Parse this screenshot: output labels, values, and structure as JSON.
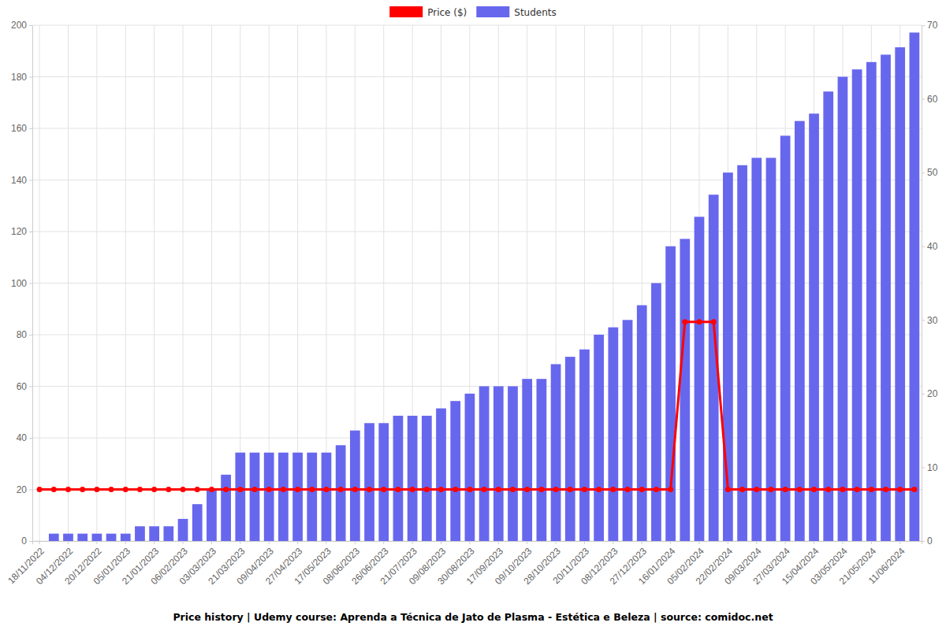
{
  "chart_data": {
    "type": "bar",
    "title": "Price history | Udemy course: Aprenda a Técnica de Jato de Plasma - Estética e Beleza | source: comidoc.net",
    "categories": [
      "18/11/2022",
      null,
      "04/12/2022",
      null,
      "20/12/2022",
      null,
      "05/01/2023",
      null,
      "21/01/2023",
      null,
      "06/02/2023",
      null,
      "03/03/2023",
      null,
      "21/03/2023",
      null,
      "09/04/2023",
      null,
      "27/04/2023",
      null,
      "17/05/2023",
      null,
      "08/06/2023",
      null,
      "26/06/2023",
      null,
      "21/07/2023",
      null,
      "09/08/2023",
      null,
      "30/08/2023",
      null,
      "17/09/2023",
      null,
      "09/10/2023",
      null,
      "28/10/2023",
      null,
      "20/11/2023",
      null,
      "08/12/2023",
      null,
      "27/12/2023",
      null,
      "16/01/2024",
      null,
      "05/02/2024",
      null,
      "22/02/2024",
      null,
      "09/03/2024",
      null,
      "27/03/2024",
      null,
      "15/04/2024",
      null,
      "03/05/2024",
      null,
      "21/05/2024",
      null,
      "11/06/2024",
      null
    ],
    "series": [
      {
        "name": "Price ($)",
        "type": "line",
        "color": "#ff0000",
        "marker": "circle",
        "axis": "y",
        "values": [
          20,
          20,
          20,
          20,
          20,
          20,
          20,
          20,
          20,
          20,
          20,
          20,
          20,
          20,
          20,
          20,
          20,
          20,
          20,
          20,
          20,
          20,
          20,
          20,
          20,
          20,
          20,
          20,
          20,
          20,
          20,
          20,
          20,
          20,
          20,
          20,
          20,
          20,
          20,
          20,
          20,
          20,
          20,
          20,
          20,
          85,
          85,
          85,
          20,
          20,
          20,
          20,
          20,
          20,
          20,
          20,
          20,
          20,
          20,
          20,
          20,
          20
        ]
      },
      {
        "name": "Students",
        "type": "bar",
        "color": "#6767ee",
        "axis": "y2",
        "values": [
          0,
          1,
          1,
          1,
          1,
          1,
          1,
          2,
          2,
          2,
          3,
          5,
          7,
          9,
          12,
          12,
          12,
          12,
          12,
          12,
          12,
          13,
          15,
          16,
          16,
          17,
          17,
          17,
          18,
          19,
          20,
          21,
          21,
          21,
          22,
          22,
          24,
          25,
          26,
          28,
          29,
          30,
          32,
          35,
          40,
          41,
          44,
          47,
          50,
          51,
          52,
          52,
          55,
          57,
          58,
          61,
          63,
          64,
          65,
          66,
          67,
          69
        ]
      }
    ],
    "ylim": [
      0,
      200
    ],
    "yticks": [
      0,
      20,
      40,
      60,
      80,
      100,
      120,
      140,
      160,
      180,
      200
    ],
    "y2lim": [
      0,
      70
    ],
    "y2ticks": [
      0,
      10,
      20,
      30,
      40,
      50,
      60,
      70
    ],
    "grid": true,
    "legend": "top"
  }
}
